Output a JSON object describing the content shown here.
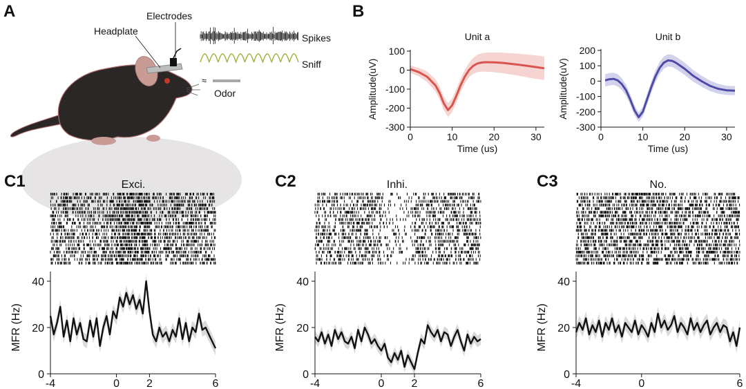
{
  "panels": {
    "a": "A",
    "b": "B",
    "c1": "C1",
    "c2": "C2",
    "c3": "C3"
  },
  "schematic": {
    "headplate": "Headplate",
    "electrodes": "Electrodes",
    "spikes": "Spikes",
    "sniff": "Sniff",
    "odor": "Odor",
    "colors": {
      "mouse": "#2b2727",
      "mouse_edge": "#b06a6a",
      "ear": "#c99b95",
      "sniff": "#9ab43c",
      "odor_bar": "#a8a8a8",
      "mound": "#e6e4e4"
    }
  },
  "chart_data": [
    {
      "type": "line",
      "id": "unit-a",
      "title": "Unit a",
      "xlabel": "Time (us)",
      "ylabel": "Amplitude(uV)",
      "xlim": [
        0,
        32
      ],
      "ylim": [
        -300,
        100
      ],
      "xticks": [
        0,
        10,
        20,
        30
      ],
      "yticks": [
        100,
        0,
        -100,
        -200,
        -300
      ],
      "color": "#d9534f",
      "band_color": "#f6d4d2",
      "x": [
        0,
        2,
        4,
        6,
        7,
        8,
        9,
        10,
        11,
        12,
        13,
        14,
        15,
        16,
        17,
        18,
        20,
        22,
        24,
        26,
        28,
        30,
        32
      ],
      "y": [
        5,
        -10,
        -35,
        -80,
        -120,
        -175,
        -210,
        -185,
        -135,
        -80,
        -35,
        0,
        22,
        35,
        40,
        42,
        41,
        38,
        33,
        28,
        22,
        16,
        10
      ],
      "band": [
        20,
        22,
        28,
        32,
        34,
        36,
        36,
        36,
        36,
        36,
        36,
        38,
        42,
        46,
        48,
        50,
        52,
        54,
        56,
        58,
        60,
        62,
        62
      ]
    },
    {
      "type": "line",
      "id": "unit-b",
      "title": "Unit b",
      "xlabel": "Time (us)",
      "ylabel": "Amplitude(uV)",
      "xlim": [
        0,
        32
      ],
      "ylim": [
        -300,
        200
      ],
      "xticks": [
        0,
        10,
        20,
        30
      ],
      "yticks": [
        200,
        100,
        0,
        -100,
        -200,
        -300
      ],
      "color": "#4f4aa8",
      "band_color": "#d3d2ec",
      "x": [
        1,
        2,
        3,
        4,
        5,
        6,
        7,
        8,
        9,
        10,
        11,
        12,
        13,
        14,
        15,
        16,
        17,
        18,
        20,
        22,
        24,
        26,
        28,
        30,
        32
      ],
      "y": [
        5,
        12,
        15,
        5,
        -20,
        -60,
        -120,
        -190,
        -235,
        -200,
        -120,
        -40,
        30,
        85,
        120,
        135,
        132,
        118,
        80,
        35,
        0,
        -30,
        -50,
        -60,
        -62
      ],
      "band": [
        40,
        40,
        40,
        40,
        38,
        36,
        34,
        32,
        30,
        32,
        34,
        36,
        38,
        40,
        40,
        40,
        40,
        40,
        40,
        38,
        36,
        34,
        32,
        30,
        30
      ]
    },
    {
      "type": "line",
      "id": "c1",
      "title": "Exci.",
      "ylabel": "MFR (Hz)",
      "xlim": [
        -4,
        6
      ],
      "ylim": [
        0,
        40
      ],
      "xticks": [
        -4,
        0,
        2,
        6
      ],
      "yticks": [
        0,
        20,
        40
      ],
      "raster_rows": 20,
      "raster_profile": [
        {
          "x0": -4,
          "x1": 0,
          "rate": 18
        },
        {
          "x0": 0,
          "x1": 2,
          "rate": 34
        },
        {
          "x0": 2,
          "x1": 6,
          "rate": 20
        }
      ],
      "x": [
        -4.0,
        -3.8,
        -3.6,
        -3.4,
        -3.2,
        -3.0,
        -2.8,
        -2.6,
        -2.4,
        -2.2,
        -2.0,
        -1.8,
        -1.6,
        -1.4,
        -1.2,
        -1.0,
        -0.8,
        -0.6,
        -0.4,
        -0.2,
        0.0,
        0.2,
        0.4,
        0.6,
        0.8,
        1.0,
        1.2,
        1.4,
        1.6,
        1.8,
        2.0,
        2.2,
        2.4,
        2.6,
        2.8,
        3.0,
        3.2,
        3.4,
        3.6,
        3.8,
        4.0,
        4.2,
        4.4,
        4.6,
        4.8,
        5.0,
        5.2,
        5.4,
        5.6,
        5.8,
        6.0
      ],
      "y": [
        25,
        17,
        22,
        29,
        16,
        23,
        14,
        24,
        17,
        22,
        15,
        14,
        23,
        16,
        24,
        12,
        20,
        25,
        17,
        27,
        24,
        33,
        29,
        35,
        30,
        34,
        28,
        32,
        26,
        40,
        27,
        17,
        14,
        20,
        16,
        18,
        14,
        19,
        16,
        24,
        15,
        22,
        14,
        20,
        18,
        26,
        19,
        20,
        17,
        14,
        11
      ],
      "band": 3
    },
    {
      "type": "line",
      "id": "c2",
      "title": "Inhi.",
      "ylabel": "MFR (Hz)",
      "xlim": [
        -4,
        6
      ],
      "ylim": [
        0,
        40
      ],
      "xticks": [
        -4,
        0,
        2,
        6
      ],
      "yticks": [
        0,
        20,
        40
      ],
      "raster_rows": 20,
      "raster_profile": [
        {
          "x0": -4,
          "x1": 0,
          "rate": 16
        },
        {
          "x0": 0,
          "x1": 2,
          "rate": 6
        },
        {
          "x0": 2,
          "x1": 6,
          "rate": 16
        }
      ],
      "x": [
        -4.0,
        -3.8,
        -3.6,
        -3.4,
        -3.2,
        -3.0,
        -2.8,
        -2.6,
        -2.4,
        -2.2,
        -2.0,
        -1.8,
        -1.6,
        -1.4,
        -1.2,
        -1.0,
        -0.8,
        -0.6,
        -0.4,
        -0.2,
        0.0,
        0.2,
        0.4,
        0.6,
        0.8,
        1.0,
        1.2,
        1.4,
        1.6,
        1.8,
        2.0,
        2.2,
        2.4,
        2.6,
        2.8,
        3.0,
        3.2,
        3.4,
        3.6,
        3.8,
        4.0,
        4.2,
        4.4,
        4.6,
        4.8,
        5.0,
        5.2,
        5.4,
        5.6,
        5.8,
        6.0
      ],
      "y": [
        16,
        14,
        18,
        13,
        17,
        12,
        19,
        15,
        18,
        14,
        13,
        16,
        11,
        19,
        14,
        20,
        17,
        13,
        15,
        12,
        10,
        13,
        7,
        5,
        9,
        6,
        10,
        3,
        8,
        5,
        2,
        9,
        15,
        13,
        21,
        18,
        16,
        19,
        14,
        18,
        17,
        12,
        16,
        19,
        14,
        10,
        17,
        13,
        16,
        14,
        15
      ],
      "band": 2.5
    },
    {
      "type": "line",
      "id": "c3",
      "title": "No.",
      "ylabel": "MFR (Hz)",
      "xlim": [
        -4,
        6
      ],
      "ylim": [
        0,
        40
      ],
      "xticks": [
        -4,
        0,
        6
      ],
      "yticks": [
        0,
        20,
        40
      ],
      "raster_rows": 20,
      "raster_profile": [
        {
          "x0": -4,
          "x1": 6,
          "rate": 21
        }
      ],
      "x": [
        -4.0,
        -3.8,
        -3.6,
        -3.4,
        -3.2,
        -3.0,
        -2.8,
        -2.6,
        -2.4,
        -2.2,
        -2.0,
        -1.8,
        -1.6,
        -1.4,
        -1.2,
        -1.0,
        -0.8,
        -0.6,
        -0.4,
        -0.2,
        0.0,
        0.2,
        0.4,
        0.6,
        0.8,
        1.0,
        1.2,
        1.4,
        1.6,
        1.8,
        2.0,
        2.2,
        2.4,
        2.6,
        2.8,
        3.0,
        3.2,
        3.4,
        3.6,
        3.8,
        4.0,
        4.2,
        4.4,
        4.6,
        4.8,
        5.0,
        5.2,
        5.4,
        5.6,
        5.8,
        6.0
      ],
      "y": [
        18,
        22,
        19,
        24,
        17,
        21,
        18,
        23,
        16,
        22,
        19,
        24,
        18,
        21,
        16,
        22,
        20,
        18,
        23,
        17,
        21,
        19,
        16,
        22,
        18,
        26,
        20,
        23,
        19,
        21,
        25,
        18,
        22,
        20,
        17,
        24,
        19,
        22,
        18,
        21,
        23,
        17,
        20,
        22,
        18,
        21,
        20,
        14,
        18,
        12,
        20
      ],
      "band": 3
    }
  ]
}
